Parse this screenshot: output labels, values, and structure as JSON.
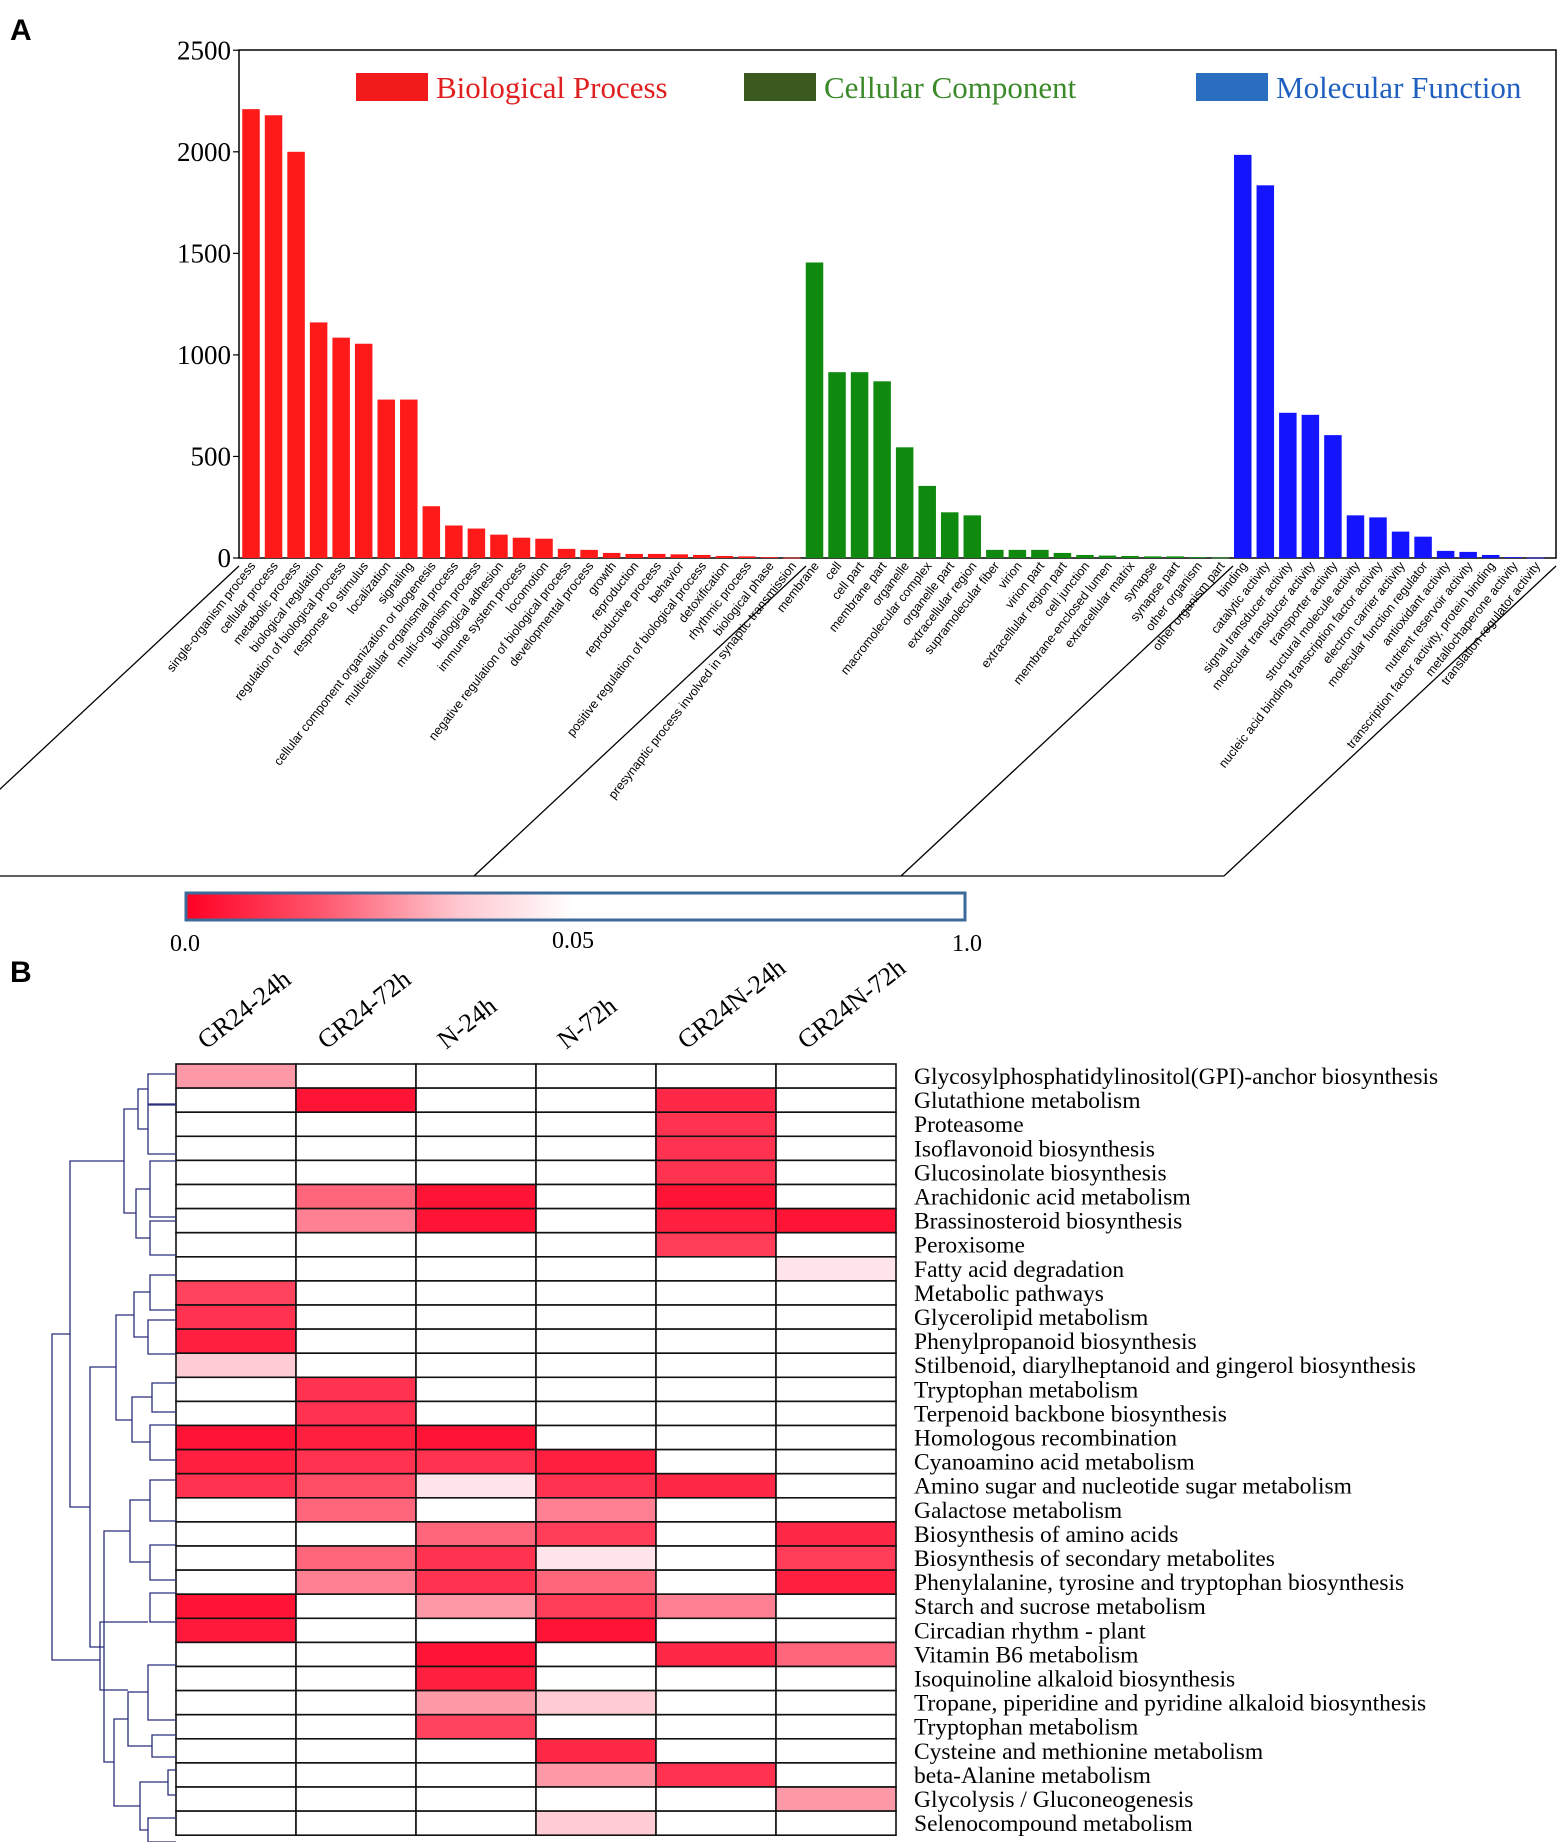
{
  "panel_labels": {
    "a": "A",
    "b": "B"
  },
  "colors": {
    "bp": "#ff1a1a",
    "cc": "#0f8a0f",
    "mf": "#1414ff",
    "bp_legend": "#f21b1b",
    "cc_legend": "#3a5a20",
    "mf_legend": "#2a6fbf",
    "bp_text": "#e02020",
    "cc_text": "#3b8a2a",
    "mf_text": "#1f5fbf"
  },
  "chart_data": [
    {
      "type": "bar",
      "title": "",
      "ylim": [
        0,
        2500
      ],
      "yticks": [
        0,
        500,
        1000,
        1500,
        2000,
        2500
      ],
      "legend": [
        "Biological Process",
        "Cellular Component",
        "Molecular Function"
      ],
      "legend_position": "top",
      "groups": [
        {
          "name": "Biological Process",
          "color_key": "bp",
          "categories": [
            "single-organism process",
            "cellular process",
            "metabolic process",
            "biological regulation",
            "regulation of biological process",
            "response to stimulus",
            "localization",
            "signaling",
            "cellular component organization or biogenesis",
            "multicellular organismal process",
            "multi-organism process",
            "biological adhesion",
            "immune system process",
            "locomotion",
            "negative regulation of biological process",
            "developmental process",
            "growth",
            "reproduction",
            "reproductive process",
            "behavior",
            "positive regulation of biological process",
            "detoxification",
            "rhythmic process",
            "biological phase",
            "presynaptic process involved in synaptic transmission"
          ],
          "values": [
            2210,
            2180,
            2000,
            1160,
            1085,
            1055,
            780,
            780,
            255,
            160,
            145,
            115,
            100,
            95,
            45,
            40,
            25,
            20,
            20,
            18,
            15,
            10,
            8,
            4,
            2
          ]
        },
        {
          "name": "Cellular Component",
          "color_key": "cc",
          "categories": [
            "membrane",
            "cell",
            "cell part",
            "membrane part",
            "organelle",
            "macromolecular complex",
            "organelle part",
            "extracellular region",
            "supramolecular fiber",
            "virion",
            "virion part",
            "extracellular region part",
            "cell junction",
            "membrane-enclosed lumen",
            "extracellular matrix",
            "synapse",
            "synapse part",
            "other organism",
            "other organism part"
          ],
          "values": [
            1455,
            915,
            915,
            870,
            545,
            355,
            225,
            210,
            40,
            40,
            40,
            25,
            15,
            12,
            10,
            8,
            8,
            4,
            2
          ]
        },
        {
          "name": "Molecular Function",
          "color_key": "mf",
          "categories": [
            "binding",
            "catalytic activity",
            "signal transducer activity",
            "molecular transducer activity",
            "transporter activity",
            "structural molecule activity",
            "nucleic acid binding transcription factor activity",
            "electron carrier activity",
            "molecular function regulator",
            "antioxidant activity",
            "nutrient reservoir activity",
            "transcription factor activity, protein binding",
            "metallochaperone activity",
            "translation regulator activity"
          ],
          "values": [
            1985,
            1835,
            715,
            705,
            605,
            210,
            200,
            130,
            105,
            35,
            30,
            15,
            4,
            2
          ]
        }
      ]
    },
    {
      "type": "heatmap",
      "columns": [
        "GR24-24h",
        "GR24-72h",
        "N-24h",
        "N-72h",
        "GR24N-24h",
        "GR24N-72h"
      ],
      "rows": [
        "Glycosylphosphatidylinositol(GPI)-anchor biosynthesis",
        "Glutathione metabolism",
        "Proteasome",
        "Isoflavonoid biosynthesis",
        "Glucosinolate biosynthesis",
        "Arachidonic acid metabolism",
        "Brassinosteroid biosynthesis",
        "Peroxisome",
        "Fatty acid degradation",
        "Metabolic pathways",
        "Glycerolipid metabolism",
        "Phenylpropanoid biosynthesis",
        "Stilbenoid, diarylheptanoid and gingerol biosynthesis",
        "Tryptophan metabolism",
        "Terpenoid backbone biosynthesis",
        "Homologous recombination",
        "Cyanoamino acid metabolism",
        "Amino sugar and nucleotide sugar metabolism",
        "Galactose metabolism",
        "Biosynthesis of amino acids",
        "Biosynthesis of secondary metabolites",
        "Phenylalanine, tyrosine and tryptophan biosynthesis",
        "Starch and sucrose metabolism",
        "Circadian rhythm - plant",
        "Vitamin B6 metabolism",
        "Isoquinoline alkaloid biosynthesis",
        "Tropane, piperidine and pyridine alkaloid biosynthesis",
        "Tryptophan metabolism",
        "Cysteine and methionine metabolism",
        "beta-Alanine metabolism",
        "Glycolysis / Gluconeogenesis",
        "Selenocompound metabolism"
      ],
      "values": [
        [
          0.03,
          1,
          1,
          1,
          1,
          1
        ],
        [
          1,
          0.004,
          1,
          1,
          0.008,
          1
        ],
        [
          1,
          1,
          1,
          1,
          0.01,
          1
        ],
        [
          1,
          1,
          1,
          1,
          0.01,
          1
        ],
        [
          1,
          1,
          1,
          1,
          0.01,
          1
        ],
        [
          1,
          0.02,
          0.004,
          1,
          0.004,
          1
        ],
        [
          1,
          0.025,
          0.004,
          1,
          0.006,
          0.004
        ],
        [
          1,
          1,
          1,
          1,
          0.012,
          1
        ],
        [
          1,
          1,
          1,
          1,
          1,
          0.045
        ],
        [
          0.013,
          1,
          1,
          1,
          1,
          1
        ],
        [
          0.01,
          1,
          1,
          1,
          1,
          1
        ],
        [
          0.006,
          1,
          1,
          1,
          1,
          1
        ],
        [
          0.04,
          1,
          1,
          1,
          1,
          1
        ],
        [
          1,
          0.01,
          1,
          1,
          1,
          1
        ],
        [
          1,
          0.01,
          1,
          1,
          1,
          1
        ],
        [
          0.004,
          0.006,
          0.004,
          1,
          1,
          1
        ],
        [
          0.006,
          0.01,
          0.01,
          0.006,
          1,
          1
        ],
        [
          0.01,
          0.015,
          0.045,
          0.01,
          0.008,
          1
        ],
        [
          1,
          0.02,
          1,
          0.025,
          1,
          1
        ],
        [
          1,
          1,
          0.02,
          0.012,
          1,
          0.008
        ],
        [
          1,
          0.02,
          0.01,
          0.045,
          1,
          0.012
        ],
        [
          1,
          0.025,
          0.01,
          0.02,
          1,
          0.006
        ],
        [
          0.004,
          1,
          0.03,
          0.012,
          0.025,
          1
        ],
        [
          0.005,
          1,
          1,
          0.004,
          1,
          1
        ],
        [
          1,
          1,
          0.004,
          1,
          0.008,
          0.02
        ],
        [
          1,
          1,
          0.006,
          1,
          1,
          1
        ],
        [
          1,
          1,
          0.03,
          0.04,
          1,
          1
        ],
        [
          1,
          1,
          0.013,
          1,
          1,
          1
        ],
        [
          1,
          1,
          1,
          0.008,
          1,
          1
        ],
        [
          1,
          1,
          1,
          0.03,
          0.01,
          1
        ],
        [
          1,
          1,
          1,
          1,
          1,
          0.03
        ],
        [
          1,
          1,
          1,
          0.04,
          1,
          1
        ]
      ],
      "colorbar": {
        "labels": [
          "0.0",
          "0.05",
          "1.0"
        ],
        "min": 0,
        "mid": 0.05,
        "max": 1
      }
    }
  ]
}
